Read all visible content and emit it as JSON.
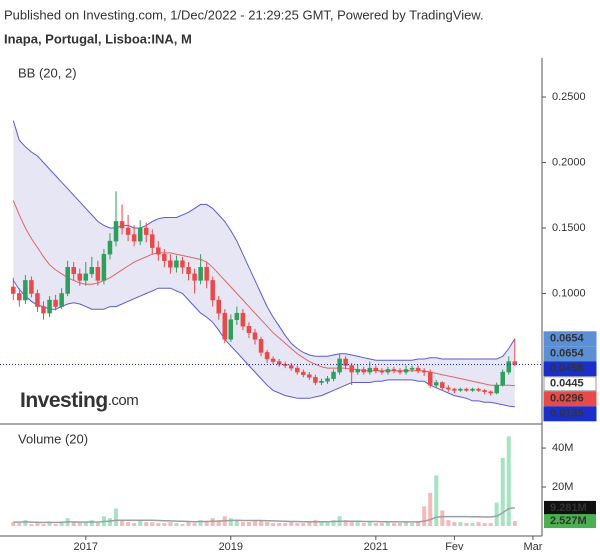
{
  "header": {
    "published": "Published on Investing.com, 1/Dec/2022 - 21:29:25 GMT, Powered by TradingView.",
    "symbol": "Inapa, Portugal, Lisboa:INA, M"
  },
  "logo": {
    "name": "Investing",
    "suffix": ".com"
  },
  "chart_data": [
    {
      "type": "candlestick",
      "indicator": "BB (20, 2)",
      "up_color": "#2e9e5b",
      "down_color": "#e84a4a",
      "band_color": "#5b5bd6",
      "band_fill": "#e6e6f4",
      "mid_color": "#e06666",
      "xlim": [
        -2.2,
        87.5
      ],
      "ylim": [
        0.0034,
        0.2798
      ],
      "yticks": [
        {
          "value": 0.25,
          "label": "0.2500"
        },
        {
          "value": 0.2,
          "label": "0.2000"
        },
        {
          "value": 0.15,
          "label": "0.1500"
        },
        {
          "value": 0.1,
          "label": "0.1000"
        }
      ],
      "ohlc": [
        [
          0.105,
          0.112,
          0.095,
          0.1
        ],
        [
          0.1,
          0.104,
          0.09,
          0.095
        ],
        [
          0.095,
          0.114,
          0.092,
          0.11
        ],
        [
          0.11,
          0.113,
          0.097,
          0.1
        ],
        [
          0.1,
          0.103,
          0.086,
          0.09
        ],
        [
          0.09,
          0.094,
          0.08,
          0.085
        ],
        [
          0.085,
          0.098,
          0.082,
          0.095
        ],
        [
          0.095,
          0.099,
          0.087,
          0.09
        ],
        [
          0.09,
          0.104,
          0.088,
          0.1
        ],
        [
          0.1,
          0.125,
          0.098,
          0.12
        ],
        [
          0.12,
          0.124,
          0.11,
          0.115
        ],
        [
          0.115,
          0.119,
          0.106,
          0.11
        ],
        [
          0.11,
          0.124,
          0.106,
          0.115
        ],
        [
          0.115,
          0.128,
          0.112,
          0.12
        ],
        [
          0.12,
          0.125,
          0.106,
          0.11
        ],
        [
          0.11,
          0.134,
          0.107,
          0.13
        ],
        [
          0.13,
          0.146,
          0.126,
          0.14
        ],
        [
          0.14,
          0.178,
          0.136,
          0.155
        ],
        [
          0.155,
          0.168,
          0.145,
          0.15
        ],
        [
          0.15,
          0.16,
          0.14,
          0.145
        ],
        [
          0.145,
          0.152,
          0.136,
          0.14
        ],
        [
          0.14,
          0.156,
          0.137,
          0.15
        ],
        [
          0.15,
          0.154,
          0.139,
          0.145
        ],
        [
          0.145,
          0.149,
          0.13,
          0.135
        ],
        [
          0.135,
          0.14,
          0.125,
          0.13
        ],
        [
          0.13,
          0.134,
          0.12,
          0.125
        ],
        [
          0.125,
          0.13,
          0.115,
          0.12
        ],
        [
          0.12,
          0.129,
          0.116,
          0.125
        ],
        [
          0.125,
          0.128,
          0.115,
          0.12
        ],
        [
          0.12,
          0.124,
          0.11,
          0.115
        ],
        [
          0.115,
          0.119,
          0.1,
          0.11
        ],
        [
          0.11,
          0.13,
          0.107,
          0.12
        ],
        [
          0.12,
          0.124,
          0.104,
          0.11
        ],
        [
          0.11,
          0.113,
          0.09,
          0.095
        ],
        [
          0.095,
          0.098,
          0.08,
          0.085
        ],
        [
          0.085,
          0.088,
          0.062,
          0.065
        ],
        [
          0.065,
          0.084,
          0.063,
          0.08
        ],
        [
          0.08,
          0.09,
          0.076,
          0.085
        ],
        [
          0.085,
          0.088,
          0.072,
          0.075
        ],
        [
          0.075,
          0.078,
          0.066,
          0.07
        ],
        [
          0.07,
          0.073,
          0.061,
          0.065
        ],
        [
          0.065,
          0.067,
          0.052,
          0.055
        ],
        [
          0.055,
          0.057,
          0.047,
          0.05
        ],
        [
          0.05,
          0.052,
          0.046,
          0.048
        ],
        [
          0.048,
          0.05,
          0.044,
          0.046
        ],
        [
          0.046,
          0.048,
          0.043,
          0.045
        ],
        [
          0.045,
          0.047,
          0.041,
          0.043
        ],
        [
          0.043,
          0.045,
          0.038,
          0.04
        ],
        [
          0.04,
          0.042,
          0.036,
          0.038
        ],
        [
          0.038,
          0.04,
          0.034,
          0.036
        ],
        [
          0.036,
          0.038,
          0.03,
          0.032
        ],
        [
          0.032,
          0.035,
          0.03,
          0.033
        ],
        [
          0.033,
          0.037,
          0.031,
          0.035
        ],
        [
          0.035,
          0.042,
          0.033,
          0.04
        ],
        [
          0.04,
          0.054,
          0.038,
          0.05
        ],
        [
          0.05,
          0.052,
          0.042,
          0.045
        ],
        [
          0.045,
          0.047,
          0.03,
          0.04
        ],
        [
          0.04,
          0.046,
          0.038,
          0.042
        ],
        [
          0.042,
          0.044,
          0.038,
          0.04
        ],
        [
          0.04,
          0.048,
          0.038,
          0.043
        ],
        [
          0.043,
          0.045,
          0.039,
          0.041
        ],
        [
          0.041,
          0.043,
          0.038,
          0.04
        ],
        [
          0.04,
          0.044,
          0.038,
          0.042
        ],
        [
          0.042,
          0.044,
          0.039,
          0.041
        ],
        [
          0.041,
          0.043,
          0.038,
          0.04
        ],
        [
          0.04,
          0.045,
          0.038,
          0.042
        ],
        [
          0.042,
          0.045,
          0.04,
          0.043
        ],
        [
          0.043,
          0.045,
          0.039,
          0.041
        ],
        [
          0.041,
          0.043,
          0.037,
          0.04
        ],
        [
          0.04,
          0.042,
          0.028,
          0.03
        ],
        [
          0.03,
          0.034,
          0.028,
          0.032
        ],
        [
          0.032,
          0.033,
          0.026,
          0.028
        ],
        [
          0.028,
          0.03,
          0.025,
          0.027
        ],
        [
          0.027,
          0.028,
          0.024,
          0.026
        ],
        [
          0.026,
          0.028,
          0.025,
          0.027
        ],
        [
          0.027,
          0.028,
          0.025,
          0.026
        ],
        [
          0.026,
          0.028,
          0.025,
          0.027
        ],
        [
          0.027,
          0.028,
          0.025,
          0.026
        ],
        [
          0.026,
          0.027,
          0.023,
          0.025
        ],
        [
          0.025,
          0.026,
          0.022,
          0.024
        ],
        [
          0.024,
          0.032,
          0.023,
          0.03
        ],
        [
          0.03,
          0.042,
          0.029,
          0.04
        ],
        [
          0.04,
          0.052,
          0.038,
          0.048
        ],
        [
          0.048,
          0.0654,
          0.0445,
          0.0458
        ]
      ],
      "bb_upper": [
        0.232,
        0.217,
        0.212,
        0.208,
        0.205,
        0.2,
        0.195,
        0.19,
        0.185,
        0.18,
        0.175,
        0.17,
        0.165,
        0.16,
        0.155,
        0.152,
        0.15,
        0.15,
        0.152,
        0.152,
        0.15,
        0.15,
        0.152,
        0.155,
        0.157,
        0.158,
        0.158,
        0.158,
        0.16,
        0.162,
        0.165,
        0.168,
        0.168,
        0.165,
        0.16,
        0.155,
        0.148,
        0.14,
        0.13,
        0.12,
        0.11,
        0.1,
        0.09,
        0.082,
        0.075,
        0.068,
        0.062,
        0.058,
        0.055,
        0.053,
        0.052,
        0.052,
        0.052,
        0.053,
        0.054,
        0.054,
        0.053,
        0.052,
        0.051,
        0.05,
        0.049,
        0.049,
        0.049,
        0.049,
        0.049,
        0.049,
        0.049,
        0.05,
        0.05,
        0.051,
        0.051,
        0.05,
        0.05,
        0.05,
        0.05,
        0.05,
        0.05,
        0.05,
        0.05,
        0.05,
        0.05,
        0.052,
        0.058,
        0.0654
      ],
      "bb_mid": [
        0.171,
        0.16,
        0.15,
        0.142,
        0.135,
        0.128,
        0.122,
        0.118,
        0.115,
        0.112,
        0.11,
        0.108,
        0.107,
        0.107,
        0.108,
        0.11,
        0.112,
        0.115,
        0.118,
        0.121,
        0.124,
        0.126,
        0.128,
        0.13,
        0.131,
        0.131,
        0.131,
        0.13,
        0.129,
        0.128,
        0.127,
        0.126,
        0.124,
        0.12,
        0.115,
        0.11,
        0.105,
        0.1,
        0.095,
        0.09,
        0.085,
        0.08,
        0.075,
        0.07,
        0.066,
        0.062,
        0.058,
        0.054,
        0.051,
        0.048,
        0.046,
        0.044,
        0.043,
        0.043,
        0.043,
        0.043,
        0.042,
        0.042,
        0.041,
        0.041,
        0.041,
        0.041,
        0.041,
        0.041,
        0.041,
        0.041,
        0.041,
        0.041,
        0.041,
        0.04,
        0.039,
        0.038,
        0.037,
        0.036,
        0.035,
        0.034,
        0.033,
        0.032,
        0.031,
        0.03,
        0.03,
        0.03,
        0.03,
        0.0296
      ],
      "bb_lower": [
        0.11,
        0.103,
        0.098,
        0.094,
        0.091,
        0.09,
        0.088,
        0.088,
        0.09,
        0.092,
        0.093,
        0.092,
        0.09,
        0.088,
        0.088,
        0.088,
        0.09,
        0.09,
        0.092,
        0.094,
        0.096,
        0.098,
        0.1,
        0.102,
        0.104,
        0.104,
        0.104,
        0.102,
        0.1,
        0.095,
        0.09,
        0.085,
        0.082,
        0.078,
        0.072,
        0.065,
        0.06,
        0.055,
        0.05,
        0.045,
        0.04,
        0.035,
        0.03,
        0.026,
        0.024,
        0.022,
        0.021,
        0.02,
        0.02,
        0.02,
        0.021,
        0.022,
        0.024,
        0.026,
        0.028,
        0.03,
        0.032,
        0.032,
        0.032,
        0.032,
        0.033,
        0.033,
        0.034,
        0.034,
        0.034,
        0.034,
        0.034,
        0.033,
        0.033,
        0.03,
        0.028,
        0.026,
        0.024,
        0.022,
        0.021,
        0.02,
        0.018,
        0.018,
        0.017,
        0.017,
        0.016,
        0.015,
        0.014,
        0.0135
      ],
      "price_labels": [
        {
          "value": 0.0654,
          "color": "#5b8fd6",
          "text_color": "#ffffff"
        },
        {
          "value": 0.0654,
          "color": "#5b8fd6",
          "text_color": "#ffffff"
        },
        {
          "value": 0.0458,
          "color": "#1a2fc9",
          "text_color": "#ffffff"
        },
        {
          "value": 0.0445,
          "color": "#ffffff",
          "text_color": "#000000"
        },
        {
          "value": 0.0296,
          "color": "#e84a4a",
          "text_color": "#ffffff"
        },
        {
          "value": 0.0135,
          "color": "#1a2fc9",
          "text_color": "#ffffff"
        }
      ]
    },
    {
      "type": "bar",
      "title": "Volume (20)",
      "up_color": "#a6e3c2",
      "down_color": "#f6b8b8",
      "ma_color": "#9aa0a0",
      "xlim": [
        -2.2,
        87.5
      ],
      "ylim": [
        0,
        50.3
      ],
      "yticks": [
        {
          "value": 40,
          "label": "40M"
        },
        {
          "value": 20,
          "label": "20M"
        }
      ],
      "xticks": [
        {
          "value": 12,
          "label": "2017"
        },
        {
          "value": 36,
          "label": "2019"
        },
        {
          "value": 60,
          "label": "2021"
        },
        {
          "value": 73,
          "label": "Fev"
        },
        {
          "value": 86,
          "label": "Mar"
        }
      ],
      "values": [
        2,
        1.5,
        3,
        1,
        1.5,
        1,
        2,
        1,
        2,
        4,
        2,
        1.5,
        2,
        3,
        1.5,
        5,
        4,
        9,
        3,
        2,
        1.5,
        3,
        2,
        2,
        1.5,
        1.5,
        2,
        1.5,
        1,
        2,
        1.5,
        3,
        2,
        4,
        3,
        5,
        4,
        3,
        2,
        2,
        2.5,
        3,
        2,
        1.5,
        1.5,
        1.5,
        2,
        1.5,
        1.5,
        2,
        3,
        2,
        2,
        3,
        5,
        3,
        2,
        2,
        1.5,
        2,
        1.5,
        1.5,
        2,
        1.5,
        1.5,
        2,
        1.5,
        2,
        10,
        17,
        26,
        8,
        3,
        2,
        2,
        1.5,
        1.5,
        2,
        1.5,
        1.5,
        12,
        35,
        46,
        2.527
      ],
      "ma": [
        2.0,
        2.0,
        2.1,
        2.0,
        1.9,
        1.8,
        1.9,
        1.8,
        1.9,
        2.1,
        2.1,
        2.0,
        2.0,
        2.1,
        2.0,
        2.3,
        2.5,
        3.0,
        3.0,
        3.0,
        2.9,
        3.0,
        3.0,
        2.9,
        2.8,
        2.7,
        2.6,
        2.5,
        2.4,
        2.3,
        2.2,
        2.3,
        2.3,
        2.4,
        2.5,
        2.7,
        2.8,
        2.9,
        2.8,
        2.8,
        2.8,
        2.8,
        2.7,
        2.6,
        2.5,
        2.4,
        2.3,
        2.3,
        2.2,
        2.2,
        2.2,
        2.2,
        2.2,
        2.3,
        2.4,
        2.4,
        2.4,
        2.4,
        2.3,
        2.3,
        2.3,
        2.2,
        2.2,
        2.2,
        2.1,
        2.1,
        2.1,
        2.1,
        2.5,
        3.3,
        4.5,
        4.8,
        4.8,
        4.8,
        4.8,
        4.8,
        4.7,
        4.7,
        4.6,
        4.6,
        5.1,
        6.8,
        9.0,
        9.281
      ],
      "value_labels": [
        {
          "value": 9.281,
          "label": "9.281M",
          "color": "#111111"
        },
        {
          "value": 2.527,
          "label": "2.527M",
          "color": "#4caf50"
        }
      ]
    }
  ]
}
